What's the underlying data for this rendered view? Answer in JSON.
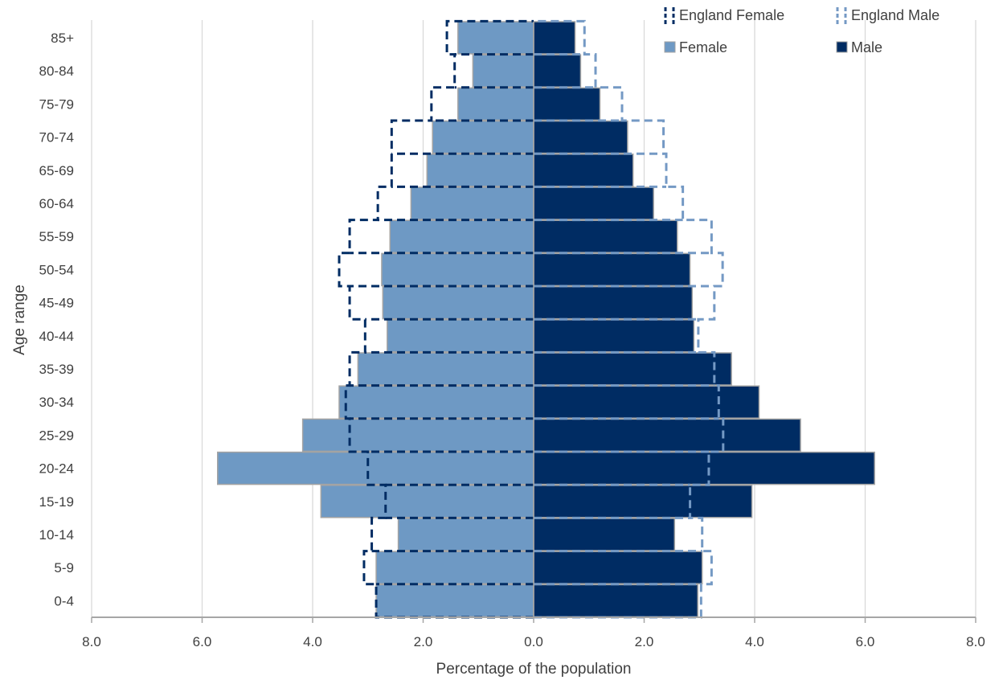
{
  "chart_data": {
    "type": "bar",
    "orientation": "horizontal-population-pyramid",
    "categories": [
      "0-4",
      "5-9",
      "10-14",
      "15-19",
      "20-24",
      "25-29",
      "30-34",
      "35-39",
      "40-44",
      "45-49",
      "50-54",
      "55-59",
      "60-64",
      "65-69",
      "70-74",
      "75-79",
      "80-84",
      "85+"
    ],
    "series": [
      {
        "name": "Female",
        "style": "bar",
        "side": "left",
        "values": [
          2.85,
          2.85,
          2.45,
          3.85,
          5.72,
          4.18,
          3.52,
          3.18,
          2.65,
          2.73,
          2.75,
          2.6,
          2.22,
          1.93,
          1.83,
          1.37,
          1.1,
          1.37
        ]
      },
      {
        "name": "Male",
        "style": "bar",
        "side": "right",
        "values": [
          2.97,
          3.05,
          2.55,
          3.95,
          6.17,
          4.83,
          4.08,
          3.58,
          2.9,
          2.87,
          2.83,
          2.6,
          2.17,
          1.8,
          1.7,
          1.2,
          0.85,
          0.75
        ]
      },
      {
        "name": "England Female",
        "style": "dashed-outline",
        "side": "left",
        "values": [
          2.85,
          3.07,
          2.93,
          2.68,
          3.0,
          3.33,
          3.4,
          3.33,
          3.05,
          3.33,
          3.52,
          3.33,
          2.82,
          2.57,
          2.57,
          1.85,
          1.43,
          1.57
        ]
      },
      {
        "name": "England Male",
        "style": "dashed-outline",
        "side": "right",
        "values": [
          3.03,
          3.22,
          3.05,
          2.83,
          3.17,
          3.43,
          3.35,
          3.27,
          2.98,
          3.27,
          3.42,
          3.22,
          2.7,
          2.4,
          2.35,
          1.6,
          1.12,
          0.92
        ]
      }
    ],
    "xlabel": "Percentage of the population",
    "ylabel": "Age range",
    "xlim": [
      -8,
      8
    ],
    "x_ticks": [
      "8.0",
      "6.0",
      "4.0",
      "2.0",
      "0.0",
      "2.0",
      "4.0",
      "6.0",
      "8.0"
    ],
    "grid": "vertical",
    "legend_position": "top-right",
    "colors": {
      "female": "#6e99c4",
      "male": "#002c63",
      "bar_outline": "#a3a3a3",
      "england_female_line": "#002c63",
      "england_male_line": "#7499c4",
      "gridline": "#d9d9d9",
      "axis": "#a6a6a6",
      "text": "#404040"
    }
  }
}
